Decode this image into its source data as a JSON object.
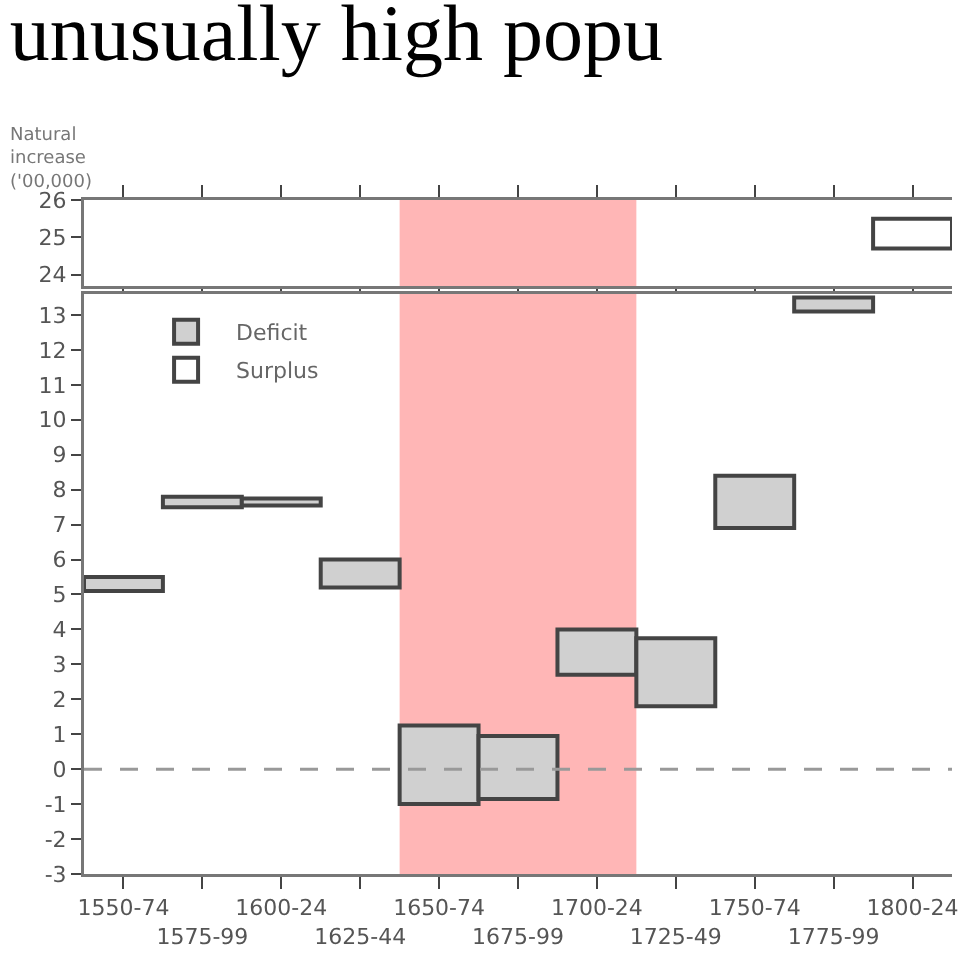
{
  "chart_data": [
    {
      "type": "bar",
      "title": "unusually high popu",
      "ylabel": "Natural\nincrease\n('00,000)",
      "categories": [
        "1550-74",
        "1575-99",
        "1600-24",
        "1625-44",
        "1650-74",
        "1675-99",
        "1700-24",
        "1725-49",
        "1750-74",
        "1775-99",
        "1800-24"
      ],
      "series": [
        {
          "color": "#ffffff",
          "base": [
            null,
            null,
            null,
            null,
            null,
            null,
            null,
            null,
            null,
            null,
            24.7
          ],
          "values": [
            null,
            null,
            null,
            null,
            null,
            null,
            null,
            null,
            null,
            null,
            0.8
          ]
        }
      ],
      "ylim": [
        23.7,
        26
      ],
      "yticks": [
        24,
        25,
        26
      ],
      "tick_labels": "y",
      "legend": false,
      "bands": [
        {
          "axis": "x",
          "from": "1650-74",
          "to": "1700-24",
          "color": "#ffb6b6"
        }
      ]
    },
    {
      "type": "bar",
      "categories": [
        "1550-74",
        "1575-99",
        "1600-24",
        "1625-44",
        "1650-74",
        "1675-99",
        "1700-24",
        "1725-49",
        "1750-74",
        "1775-99",
        "1800-24"
      ],
      "series": [
        {
          "name": "Deficit",
          "color": "#d0d0d0",
          "base": [
            5.1,
            7.5,
            7.55,
            5.2,
            -1.0,
            -0.85,
            2.7,
            1.8,
            6.9,
            13.1,
            null
          ],
          "values": [
            0.4,
            0.3,
            0.2,
            0.8,
            2.25,
            1.8,
            1.3,
            1.95,
            1.5,
            0.4,
            null
          ]
        },
        {
          "name": "Surplus",
          "color": "#ffffff",
          "base": [
            null,
            null,
            null,
            null,
            null,
            null,
            null,
            null,
            null,
            null,
            null
          ],
          "values": [
            null,
            null,
            null,
            null,
            null,
            null,
            null,
            null,
            null,
            null,
            null
          ]
        }
      ],
      "ylim": [
        -3,
        13.6
      ],
      "yticks": [
        -3,
        -2,
        -1,
        0,
        1,
        2,
        3,
        4,
        5,
        6,
        7,
        8,
        9,
        10,
        11,
        12,
        13
      ],
      "legend": "top left",
      "ref_lines": [
        {
          "axis": "y",
          "value": 0,
          "color": "#999999",
          "line_style": "dashed"
        }
      ],
      "bands": [
        {
          "axis": "x",
          "from": "1650-74",
          "to": "1700-24",
          "color": "#ffb6b6"
        }
      ]
    }
  ]
}
